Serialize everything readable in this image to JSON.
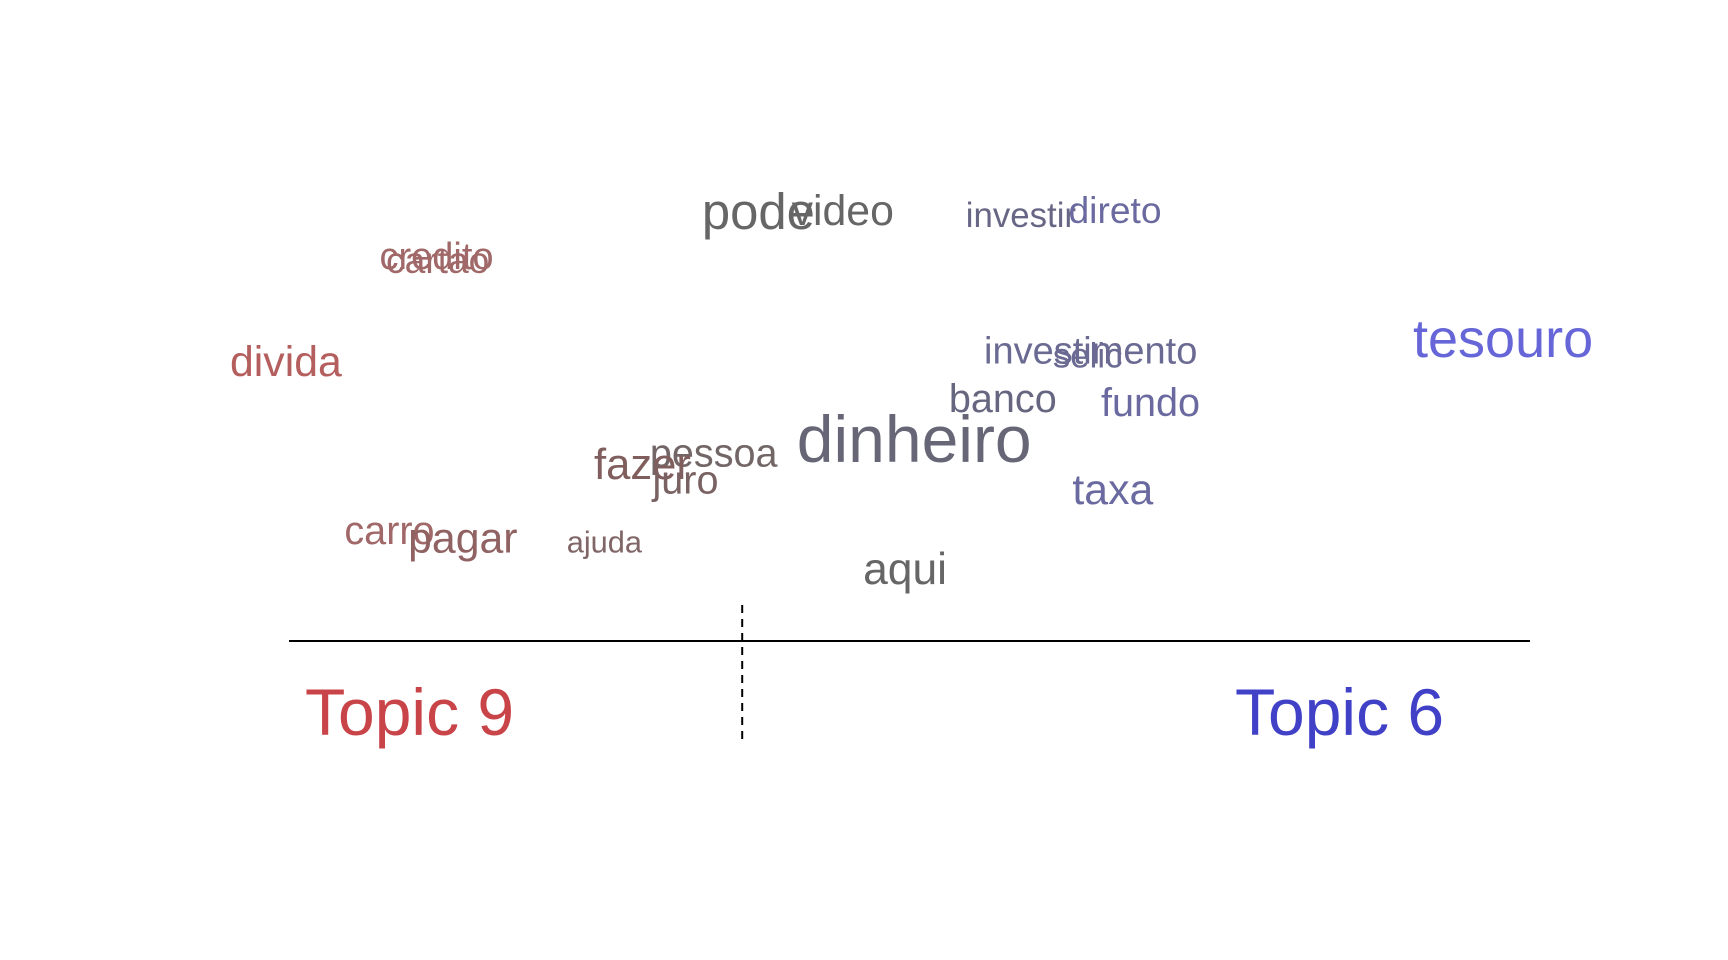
{
  "chart_data": {
    "type": "scatter",
    "subtype": "topic word comparison",
    "title": "",
    "xlabel": "",
    "ylabel": "",
    "topics": [
      {
        "name": "Topic 9",
        "color": "#c94448"
      },
      {
        "name": "Topic 6",
        "color": "#4141c8"
      }
    ],
    "x_range": [
      0,
      100
    ],
    "y_range": [
      0,
      100
    ],
    "neutral_x": 39.4,
    "words": [
      {
        "word": "credito",
        "x": 11.5,
        "y": 80.0,
        "weight": 0.3,
        "color": "#a06868"
      },
      {
        "word": "cartao",
        "x": 12.0,
        "y": 79.0,
        "weight": 0.28,
        "color": "#a06868"
      },
      {
        "word": "divida",
        "x": 0.0,
        "y": 54.5,
        "weight": 0.42,
        "color": "#b55e5e"
      },
      {
        "word": "pode",
        "x": 36.3,
        "y": 89.5,
        "weight": 0.62,
        "color": "#666666"
      },
      {
        "word": "video",
        "x": 43.2,
        "y": 90.5,
        "weight": 0.42,
        "color": "#666666"
      },
      {
        "word": "investir",
        "x": 56.6,
        "y": 90.0,
        "weight": 0.22,
        "color": "#676785"
      },
      {
        "word": "direto",
        "x": 64.5,
        "y": 91.0,
        "weight": 0.28,
        "color": "#6a6aa0"
      },
      {
        "word": "tesouro",
        "x": 91.0,
        "y": 59.0,
        "weight": 0.7,
        "color": "#6666d8"
      },
      {
        "word": "investimento",
        "x": 58.0,
        "y": 57.5,
        "weight": 0.3,
        "color": "#6a6a92"
      },
      {
        "word": "selic",
        "x": 63.3,
        "y": 56.5,
        "weight": 0.22,
        "color": "#6a6a92"
      },
      {
        "word": "banco",
        "x": 55.3,
        "y": 46.0,
        "weight": 0.34,
        "color": "#666680"
      },
      {
        "word": "fundo",
        "x": 67.0,
        "y": 45.0,
        "weight": 0.34,
        "color": "#6a6aa0"
      },
      {
        "word": "dinheiro",
        "x": 43.6,
        "y": 34.0,
        "weight": 1.0,
        "color": "#666677"
      },
      {
        "word": "pessoa",
        "x": 32.3,
        "y": 33.0,
        "weight": 0.34,
        "color": "#726666"
      },
      {
        "word": "fazer",
        "x": 28.0,
        "y": 30.0,
        "weight": 0.44,
        "color": "#805e5e"
      },
      {
        "word": "juro",
        "x": 32.5,
        "y": 26.5,
        "weight": 0.34,
        "color": "#7a6262"
      },
      {
        "word": "taxa",
        "x": 64.8,
        "y": 24.0,
        "weight": 0.42,
        "color": "#6a6aa0"
      },
      {
        "word": "carro",
        "x": 8.8,
        "y": 14.5,
        "weight": 0.34,
        "color": "#a06868"
      },
      {
        "word": "pagar",
        "x": 13.7,
        "y": 12.5,
        "weight": 0.42,
        "color": "#906262"
      },
      {
        "word": "ajuda",
        "x": 25.9,
        "y": 12.5,
        "weight": 0.12,
        "color": "#806666"
      },
      {
        "word": "aqui",
        "x": 48.7,
        "y": 5.0,
        "weight": 0.46,
        "color": "#666666"
      }
    ]
  }
}
